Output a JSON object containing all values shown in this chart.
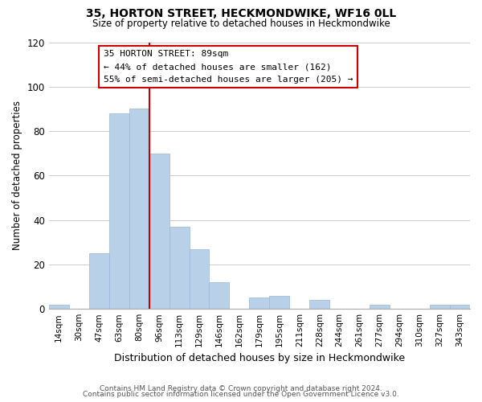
{
  "title": "35, HORTON STREET, HECKMONDWIKE, WF16 0LL",
  "subtitle": "Size of property relative to detached houses in Heckmondwike",
  "xlabel": "Distribution of detached houses by size in Heckmondwike",
  "ylabel": "Number of detached properties",
  "bar_labels": [
    "14sqm",
    "30sqm",
    "47sqm",
    "63sqm",
    "80sqm",
    "96sqm",
    "113sqm",
    "129sqm",
    "146sqm",
    "162sqm",
    "179sqm",
    "195sqm",
    "211sqm",
    "228sqm",
    "244sqm",
    "261sqm",
    "277sqm",
    "294sqm",
    "310sqm",
    "327sqm",
    "343sqm"
  ],
  "bar_values": [
    2,
    0,
    25,
    88,
    90,
    70,
    37,
    27,
    12,
    0,
    5,
    6,
    0,
    4,
    0,
    0,
    2,
    0,
    0,
    2,
    2
  ],
  "bar_color": "#b8d0e8",
  "bar_edge_color": "#9ab8d8",
  "vline_color": "#cc0000",
  "vline_x_index": 5,
  "annotation_title": "35 HORTON STREET: 89sqm",
  "annotation_line1": "← 44% of detached houses are smaller (162)",
  "annotation_line2": "55% of semi-detached houses are larger (205) →",
  "annotation_box_color": "#ffffff",
  "annotation_box_edge": "#cc0000",
  "ylim": [
    0,
    120
  ],
  "yticks": [
    0,
    20,
    40,
    60,
    80,
    100,
    120
  ],
  "footnote1": "Contains HM Land Registry data © Crown copyright and database right 2024.",
  "footnote2": "Contains public sector information licensed under the Open Government Licence v3.0.",
  "background_color": "#ffffff",
  "grid_color": "#cccccc"
}
